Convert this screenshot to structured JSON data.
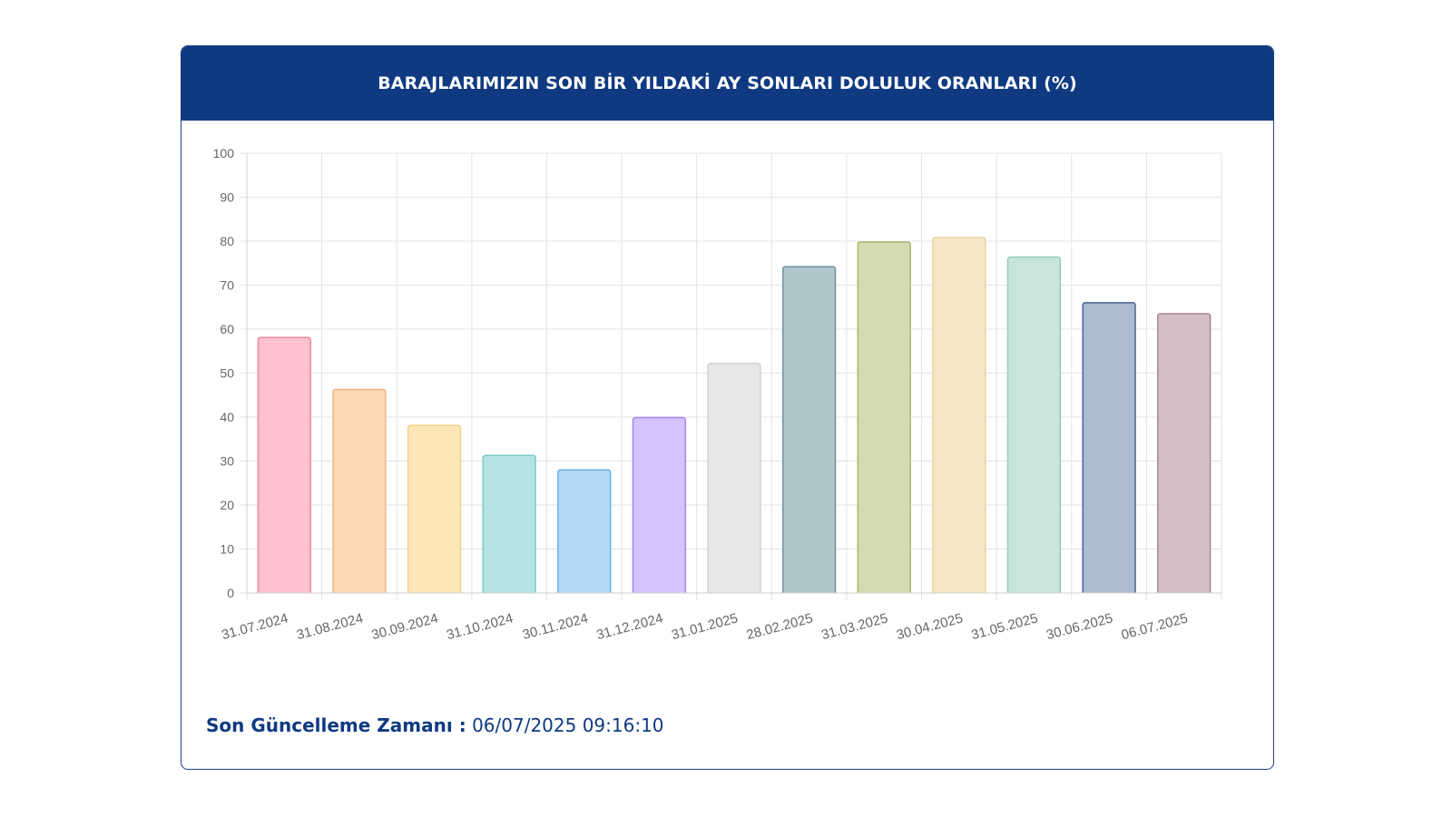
{
  "header": {
    "title": "BARAJLARIMIZIN SON BİR YILDAKİ AY SONLARI DOLULUK ORANLARI (%)"
  },
  "footer": {
    "update_label": "Son Güncelleme Zamanı :",
    "update_value": "06/07/2025 09:16:10"
  },
  "chart_data": {
    "type": "bar",
    "title": "BARAJLARIMIZIN SON BİR YILDAKİ AY SONLARI DOLULUK ORANLARI (%)",
    "categories": [
      "31.07.2024",
      "31.08.2024",
      "30.09.2024",
      "31.10.2024",
      "30.11.2024",
      "31.12.2024",
      "31.01.2025",
      "28.02.2025",
      "31.03.2025",
      "30.04.2025",
      "31.05.2025",
      "30.06.2025",
      "06.07.2025"
    ],
    "values": [
      58.1,
      46.3,
      38.1,
      31.3,
      28.0,
      39.9,
      52.2,
      74.2,
      79.8,
      80.8,
      76.4,
      66.0,
      63.5
    ],
    "ylim": [
      0,
      100
    ],
    "yticks": [
      0,
      10,
      20,
      30,
      40,
      50,
      60,
      70,
      80,
      90,
      100
    ],
    "grid": true,
    "legend": "none",
    "colors": {
      "fills": [
        "#fec1cf",
        "#fdd8b2",
        "#fde6b8",
        "#b6e3e3",
        "#b2d9f6",
        "#d5c2fe",
        "#e6e7e9",
        "#afc7cc",
        "#d5dbb1",
        "#f5e6c5",
        "#c8e4dc",
        "#adbbcf",
        "#d5bec5"
      ],
      "strokes": [
        "#f0899f",
        "#f3b77f",
        "#f6cf83",
        "#7ccaca",
        "#6cb3e8",
        "#a987ef",
        "#cfd0d3",
        "#6f9199",
        "#a9b46e",
        "#ecd49a",
        "#95cbb9",
        "#4b6392",
        "#a98594"
      ]
    }
  }
}
